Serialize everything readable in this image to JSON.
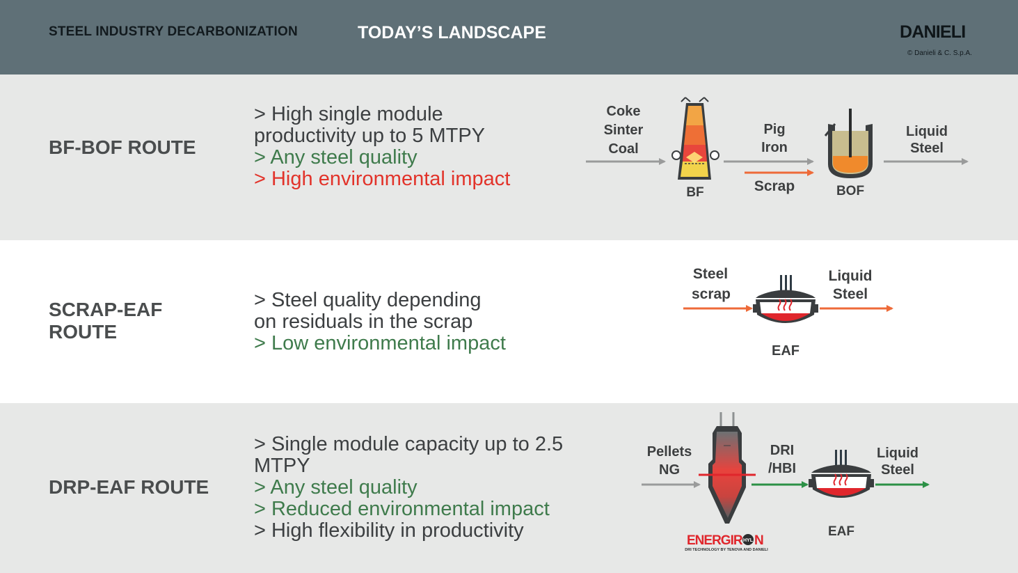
{
  "header": {
    "left_title": "STEEL INDUSTRY DECARBONIZATION",
    "center_title": "TODAY’S LANDSCAPE",
    "logo_text": "DANIELI",
    "copyright": "© Danieli & C. S.p.A."
  },
  "routes": [
    {
      "title_lines": [
        "BF-BOF ROUTE"
      ],
      "bullets": [
        {
          "text": "> High single module",
          "tone": "dark"
        },
        {
          "text": "productivity up to 5 MTPY",
          "tone": "dark"
        },
        {
          "text": "> Any steel quality",
          "tone": "green"
        },
        {
          "text": "> High environmental impact",
          "tone": "red"
        }
      ],
      "diagram": {
        "input_labels": [
          "Coke",
          "Sinter",
          "Coal"
        ],
        "furnace_label": "BF",
        "intermediate_labels": [
          "Pig",
          "Iron"
        ],
        "scrap_label": "Scrap",
        "converter_label": "BOF",
        "output_labels": [
          "Liquid",
          "Steel"
        ]
      }
    },
    {
      "title_lines": [
        "SCRAP-EAF",
        "ROUTE"
      ],
      "bullets": [
        {
          "text": "> Steel quality depending",
          "tone": "dark"
        },
        {
          "text": "on residuals in the scrap",
          "tone": "dark"
        },
        {
          "text": "> Low environmental impact",
          "tone": "green"
        }
      ],
      "diagram": {
        "input_labels": [
          "Steel",
          "scrap"
        ],
        "furnace_label": "EAF",
        "output_labels": [
          "Liquid",
          "Steel"
        ]
      }
    },
    {
      "title_lines": [
        "DRP-EAF ROUTE"
      ],
      "bullets": [
        {
          "text": "> Single module capacity up to 2.5",
          "tone": "dark"
        },
        {
          "text": "MTPY",
          "tone": "dark"
        },
        {
          "text": "> Any steel quality",
          "tone": "green"
        },
        {
          "text": "> Reduced environmental impact",
          "tone": "green"
        },
        {
          "text": "> High flexibility in productivity",
          "tone": "dark"
        }
      ],
      "diagram": {
        "input_labels": [
          "Pellets",
          "NG"
        ],
        "intermediate_labels": [
          "DRI",
          "/HBI"
        ],
        "furnace_label": "EAF",
        "output_labels": [
          "Liquid",
          "Steel"
        ],
        "logo_main_a": "ENERGIR",
        "logo_main_b": "N",
        "logo_badge": "HYL",
        "logo_tagline": "DRI TECHNOLOGY BY TENOVA AND DANIELI"
      }
    }
  ],
  "colors": {
    "header_bg": "#5f7077",
    "band_bg": "#e7e8e7",
    "text_dark": "#3c3f41",
    "text_green": "#3f7b4c",
    "text_red": "#e2332a",
    "arrow_gray": "#9a9b9b",
    "arrow_orange": "#ee6a38",
    "arrow_green": "#2c9146"
  }
}
